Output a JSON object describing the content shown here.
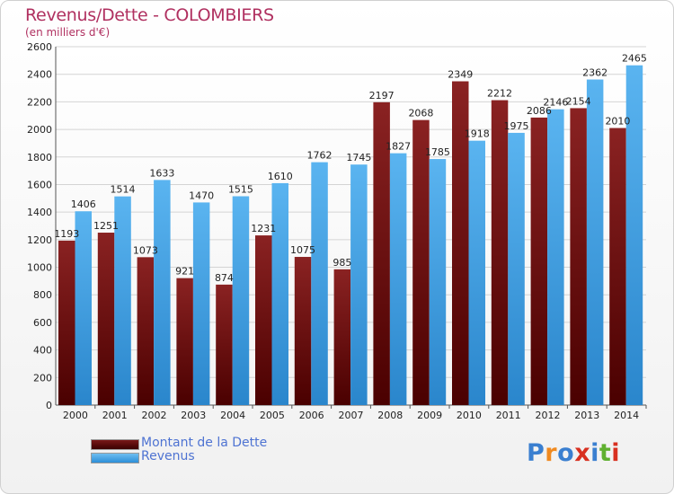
{
  "header": {
    "title": "Revenus/Dette - COLOMBIERS",
    "subtitle": "(en milliers d'€)"
  },
  "legend": {
    "debt_label": "Montant de la Dette",
    "revenue_label": "Revenus"
  },
  "logo": {
    "text": "Proxiti",
    "colors": [
      "#3a7fd0",
      "#f08a20",
      "#3a7fd0",
      "#d83020",
      "#3a7fd0",
      "#60b030",
      "#d83020"
    ]
  },
  "colors": {
    "debt": "#7a1a1a",
    "revenue": "#4aa8ea"
  },
  "chart_data": {
    "type": "bar",
    "title": "Revenus/Dette - COLOMBIERS",
    "ylabel": "(en milliers d'€)",
    "categories": [
      "2000",
      "2001",
      "2002",
      "2003",
      "2004",
      "2005",
      "2006",
      "2007",
      "2008",
      "2009",
      "2010",
      "2011",
      "2012",
      "2013",
      "2014"
    ],
    "series": [
      {
        "name": "Montant de la Dette",
        "values": [
          1193,
          1251,
          1073,
          921,
          874,
          1231,
          1075,
          985,
          2197,
          2068,
          2349,
          2212,
          2086,
          2154,
          2010
        ]
      },
      {
        "name": "Revenus",
        "values": [
          1406,
          1514,
          1633,
          1470,
          1515,
          1610,
          1762,
          1745,
          1827,
          1785,
          1918,
          1975,
          2146,
          2362,
          2465
        ]
      }
    ],
    "value_labels": {
      "debt": [
        "1193",
        "1251",
        "1073",
        "921",
        "874",
        "1231",
        "1075",
        "985",
        "2197",
        "2068",
        "2349",
        "2212",
        "2086",
        "2154",
        "2010"
      ],
      "revenue": [
        "1406",
        "1514",
        "1633",
        "1470",
        "1515",
        "1610",
        "1762",
        "1745",
        "1827",
        "1785",
        "1918",
        "1975",
        "2146",
        "2362",
        "2465"
      ]
    },
    "ylim": [
      0,
      2600
    ],
    "yticks": [
      "0",
      "200",
      "400",
      "600",
      "800",
      "1000",
      "1200",
      "1400",
      "1600",
      "1800",
      "2000",
      "2200",
      "2400",
      "2600"
    ],
    "grid": true,
    "legend_position": "bottom-left"
  }
}
